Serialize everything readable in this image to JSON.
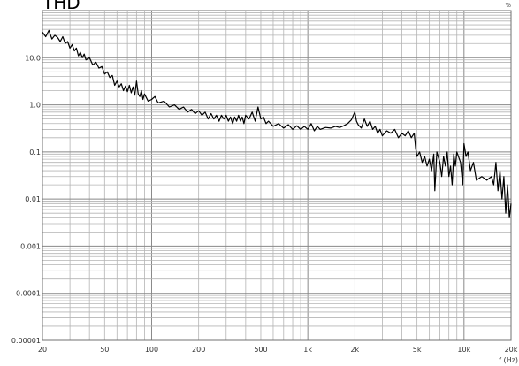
{
  "chart_data": {
    "type": "line",
    "title": "THD",
    "corner_label": "%",
    "xlabel": "f (Hz)",
    "ylabel": "",
    "xscale": "log",
    "yscale": "log",
    "xlim": [
      20,
      20000
    ],
    "ylim": [
      1e-05,
      100
    ],
    "grid": true,
    "x_ticks": [
      {
        "value": 20,
        "label": "20"
      },
      {
        "value": 50,
        "label": "50"
      },
      {
        "value": 100,
        "label": "100"
      },
      {
        "value": 200,
        "label": "200"
      },
      {
        "value": 500,
        "label": "500"
      },
      {
        "value": 1000,
        "label": "1k"
      },
      {
        "value": 2000,
        "label": "2k"
      },
      {
        "value": 5000,
        "label": "5k"
      },
      {
        "value": 10000,
        "label": "10k"
      },
      {
        "value": 20000,
        "label": "20k"
      }
    ],
    "y_ticks": [
      {
        "value": 10,
        "label": "10.0"
      },
      {
        "value": 1,
        "label": "1.0"
      },
      {
        "value": 0.1,
        "label": "0.1"
      },
      {
        "value": 0.01,
        "label": "0.01"
      },
      {
        "value": 0.001,
        "label": "0.001"
      },
      {
        "value": 0.0001,
        "label": "0.0001"
      },
      {
        "value": 1e-05,
        "label": "0.00001"
      }
    ],
    "series": [
      {
        "name": "",
        "color": "#000000",
        "points": [
          [
            20,
            35
          ],
          [
            21,
            28
          ],
          [
            22,
            38
          ],
          [
            23,
            25
          ],
          [
            24,
            30
          ],
          [
            25,
            27
          ],
          [
            26,
            22
          ],
          [
            27,
            28
          ],
          [
            28,
            20
          ],
          [
            29,
            22
          ],
          [
            30,
            16
          ],
          [
            31,
            19
          ],
          [
            32,
            14
          ],
          [
            33,
            16
          ],
          [
            34,
            11
          ],
          [
            35,
            13
          ],
          [
            36,
            10
          ],
          [
            37,
            12
          ],
          [
            38,
            9
          ],
          [
            40,
            10
          ],
          [
            42,
            7
          ],
          [
            44,
            8
          ],
          [
            46,
            6
          ],
          [
            48,
            6.5
          ],
          [
            50,
            4.5
          ],
          [
            52,
            5
          ],
          [
            54,
            3.8
          ],
          [
            56,
            4.2
          ],
          [
            58,
            2.6
          ],
          [
            60,
            3.2
          ],
          [
            62,
            2.4
          ],
          [
            64,
            2.8
          ],
          [
            66,
            2.0
          ],
          [
            68,
            2.5
          ],
          [
            70,
            1.9
          ],
          [
            72,
            2.6
          ],
          [
            74,
            1.8
          ],
          [
            76,
            2.4
          ],
          [
            78,
            1.6
          ],
          [
            80,
            3.2
          ],
          [
            82,
            1.7
          ],
          [
            84,
            1.5
          ],
          [
            86,
            2.0
          ],
          [
            88,
            1.3
          ],
          [
            90,
            1.7
          ],
          [
            95,
            1.2
          ],
          [
            100,
            1.3
          ],
          [
            105,
            1.5
          ],
          [
            110,
            1.1
          ],
          [
            120,
            1.2
          ],
          [
            130,
            0.9
          ],
          [
            140,
            1.0
          ],
          [
            150,
            0.8
          ],
          [
            160,
            0.9
          ],
          [
            170,
            0.7
          ],
          [
            180,
            0.8
          ],
          [
            190,
            0.65
          ],
          [
            200,
            0.75
          ],
          [
            210,
            0.6
          ],
          [
            220,
            0.7
          ],
          [
            230,
            0.5
          ],
          [
            240,
            0.65
          ],
          [
            250,
            0.5
          ],
          [
            260,
            0.6
          ],
          [
            270,
            0.45
          ],
          [
            280,
            0.6
          ],
          [
            290,
            0.5
          ],
          [
            300,
            0.6
          ],
          [
            310,
            0.45
          ],
          [
            320,
            0.55
          ],
          [
            330,
            0.4
          ],
          [
            340,
            0.55
          ],
          [
            350,
            0.45
          ],
          [
            360,
            0.6
          ],
          [
            370,
            0.45
          ],
          [
            380,
            0.55
          ],
          [
            390,
            0.4
          ],
          [
            400,
            0.6
          ],
          [
            420,
            0.5
          ],
          [
            440,
            0.7
          ],
          [
            460,
            0.45
          ],
          [
            480,
            0.9
          ],
          [
            500,
            0.5
          ],
          [
            520,
            0.55
          ],
          [
            540,
            0.4
          ],
          [
            560,
            0.45
          ],
          [
            600,
            0.35
          ],
          [
            650,
            0.4
          ],
          [
            700,
            0.32
          ],
          [
            750,
            0.38
          ],
          [
            800,
            0.3
          ],
          [
            850,
            0.36
          ],
          [
            900,
            0.3
          ],
          [
            950,
            0.35
          ],
          [
            1000,
            0.3
          ],
          [
            1050,
            0.4
          ],
          [
            1100,
            0.28
          ],
          [
            1150,
            0.35
          ],
          [
            1200,
            0.3
          ],
          [
            1300,
            0.33
          ],
          [
            1400,
            0.32
          ],
          [
            1500,
            0.35
          ],
          [
            1600,
            0.33
          ],
          [
            1700,
            0.36
          ],
          [
            1800,
            0.4
          ],
          [
            1900,
            0.48
          ],
          [
            2000,
            0.7
          ],
          [
            2050,
            0.45
          ],
          [
            2100,
            0.38
          ],
          [
            2200,
            0.32
          ],
          [
            2300,
            0.5
          ],
          [
            2400,
            0.35
          ],
          [
            2500,
            0.45
          ],
          [
            2600,
            0.3
          ],
          [
            2700,
            0.35
          ],
          [
            2800,
            0.25
          ],
          [
            2900,
            0.3
          ],
          [
            3000,
            0.22
          ],
          [
            3200,
            0.28
          ],
          [
            3400,
            0.25
          ],
          [
            3600,
            0.3
          ],
          [
            3800,
            0.2
          ],
          [
            4000,
            0.25
          ],
          [
            4200,
            0.22
          ],
          [
            4400,
            0.28
          ],
          [
            4600,
            0.2
          ],
          [
            4800,
            0.25
          ],
          [
            4900,
            0.12
          ],
          [
            5000,
            0.08
          ],
          [
            5200,
            0.1
          ],
          [
            5400,
            0.06
          ],
          [
            5600,
            0.08
          ],
          [
            5800,
            0.05
          ],
          [
            6000,
            0.07
          ],
          [
            6200,
            0.04
          ],
          [
            6400,
            0.09
          ],
          [
            6500,
            0.015
          ],
          [
            6700,
            0.1
          ],
          [
            7000,
            0.06
          ],
          [
            7200,
            0.03
          ],
          [
            7400,
            0.08
          ],
          [
            7600,
            0.05
          ],
          [
            7800,
            0.1
          ],
          [
            8000,
            0.03
          ],
          [
            8200,
            0.05
          ],
          [
            8400,
            0.02
          ],
          [
            8600,
            0.09
          ],
          [
            8800,
            0.05
          ],
          [
            9000,
            0.1
          ],
          [
            9500,
            0.06
          ],
          [
            9800,
            0.02
          ],
          [
            10000,
            0.15
          ],
          [
            10300,
            0.08
          ],
          [
            10600,
            0.1
          ],
          [
            11000,
            0.04
          ],
          [
            11500,
            0.06
          ],
          [
            12000,
            0.025
          ],
          [
            13000,
            0.03
          ],
          [
            14000,
            0.025
          ],
          [
            15000,
            0.03
          ],
          [
            15500,
            0.02
          ],
          [
            16000,
            0.06
          ],
          [
            16500,
            0.015
          ],
          [
            17000,
            0.04
          ],
          [
            17500,
            0.01
          ],
          [
            18000,
            0.03
          ],
          [
            18500,
            0.005
          ],
          [
            19000,
            0.02
          ],
          [
            19500,
            0.004
          ],
          [
            20000,
            0.008
          ]
        ]
      }
    ]
  }
}
